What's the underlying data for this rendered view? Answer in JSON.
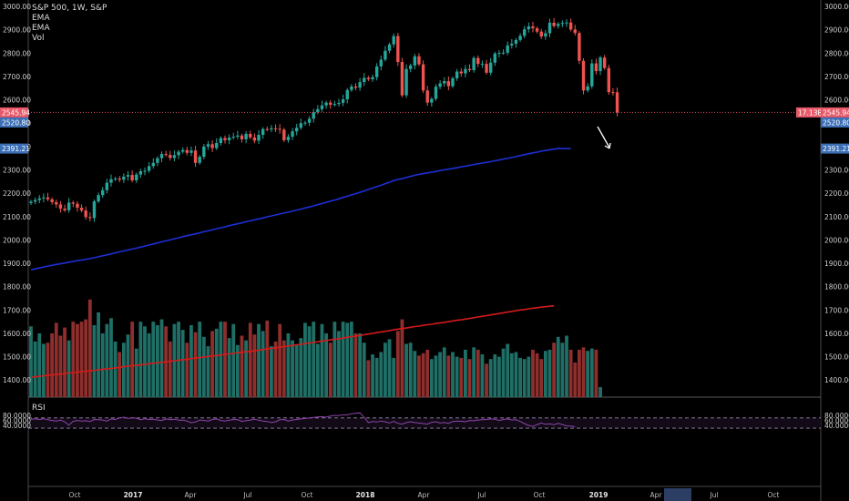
{
  "legend": {
    "symbol": "S&P 500, 1W, S&P",
    "items": [
      "EMA",
      "EMA",
      "Vol"
    ]
  },
  "rsi_label": "RSI",
  "price_tags": {
    "last": "2545.94",
    "ema_short": "2520.80",
    "ema_long": "2391.21",
    "volume": "17.13B",
    "right_last": "2545.94",
    "right_ema_short": "2520.80",
    "right_ema_long": "2391.21"
  },
  "colors": {
    "up": "#26a69a",
    "down": "#ef5350",
    "vol_up": "#1f6f66",
    "vol_down": "#8e2f2d",
    "ema_blue": "#1d2fd6",
    "ema_red": "#d21b1b",
    "rsi": "#8e44ad",
    "tag_red": "#e85a6a",
    "tag_blue": "#3b6fb6"
  },
  "chart_data": [
    {
      "type": "candlestick",
      "title": "S&P 500, 1W, S&P",
      "y_ticks": [
        "3000.00",
        "2900.00",
        "2800.00",
        "2700.00",
        "2600.00",
        "2500.00",
        "2400.00",
        "2300.00",
        "2200.00",
        "2100.00",
        "2000.00",
        "1900.00",
        "1800.00",
        "1700.00",
        "1600.00",
        "1500.00",
        "1400.00"
      ],
      "ylim": [
        1350,
        3010
      ],
      "x_ticks": [
        "Oct",
        "2017",
        "Apr",
        "Jul",
        "Oct",
        "2018",
        "Apr",
        "Jul",
        "Oct",
        "2019",
        "Apr",
        "Jul",
        "Oct"
      ],
      "close": [
        2164,
        2171,
        2178,
        2182,
        2174,
        2162,
        2152,
        2134,
        2127,
        2160,
        2155,
        2138,
        2126,
        2098,
        2094,
        2165,
        2192,
        2213,
        2245,
        2260,
        2263,
        2258,
        2271,
        2278,
        2255,
        2280,
        2294,
        2296,
        2316,
        2330,
        2350,
        2368,
        2364,
        2351,
        2363,
        2378,
        2385,
        2373,
        2383,
        2330,
        2356,
        2400,
        2410,
        2393,
        2415,
        2436,
        2427,
        2438,
        2442,
        2447,
        2431,
        2454,
        2439,
        2425,
        2450,
        2475,
        2473,
        2478,
        2476,
        2472,
        2427,
        2442,
        2465,
        2480,
        2500,
        2502,
        2519,
        2547,
        2560,
        2576,
        2588,
        2579,
        2582,
        2587,
        2602,
        2642,
        2657,
        2652,
        2676,
        2694,
        2688,
        2697,
        2743,
        2772,
        2810,
        2837,
        2873,
        2762,
        2619,
        2732,
        2747,
        2786,
        2752,
        2640,
        2588,
        2604,
        2656,
        2670,
        2680,
        2658,
        2692,
        2721,
        2713,
        2732,
        2727,
        2779,
        2754,
        2754,
        2716,
        2759,
        2798,
        2801,
        2802,
        2833,
        2840,
        2856,
        2874,
        2902,
        2914,
        2906,
        2892,
        2871,
        2885,
        2930,
        2916,
        2925,
        2929,
        2931,
        2901,
        2886,
        2767,
        2640,
        2658,
        2756,
        2723,
        2781,
        2736,
        2633,
        2632,
        2546
      ],
      "series": [
        {
          "name": "EMA",
          "values": [
            1872,
            1876,
            1880,
            1884,
            1888,
            1891,
            1895,
            1898,
            1901,
            1905,
            1908,
            1911,
            1914,
            1917,
            1920,
            1924,
            1928,
            1932,
            1936,
            1940,
            1945,
            1949,
            1953,
            1957,
            1961,
            1965,
            1969,
            1974,
            1978,
            1983,
            1987,
            1992,
            1996,
            2000,
            2005,
            2009,
            2014,
            2018,
            2022,
            2026,
            2030,
            2035,
            2039,
            2043,
            2048,
            2052,
            2056,
            2061,
            2065,
            2069,
            2073,
            2078,
            2082,
            2086,
            2090,
            2094,
            2099,
            2103,
            2107,
            2111,
            2115,
            2119,
            2123,
            2128,
            2132,
            2137,
            2141,
            2146,
            2151,
            2156,
            2161,
            2166,
            2171,
            2176,
            2182,
            2187,
            2193,
            2198,
            2204,
            2210,
            2216,
            2222,
            2228,
            2234,
            2241,
            2247,
            2254,
            2259,
            2262,
            2267,
            2272,
            2277,
            2281,
            2284,
            2287,
            2290,
            2293,
            2297,
            2300,
            2303,
            2306,
            2309,
            2313,
            2316,
            2319,
            2323,
            2326,
            2329,
            2332,
            2335,
            2339,
            2342,
            2346,
            2349,
            2353,
            2357,
            2361,
            2365,
            2369,
            2373,
            2376,
            2380,
            2383,
            2386,
            2389,
            2391,
            2391,
            2391,
            2391
          ]
        },
        {
          "name": "EMA",
          "values": [
            1412,
            1414,
            1416,
            1418,
            1420,
            1422,
            1424,
            1426,
            1428,
            1430,
            1432,
            1434,
            1436,
            1438,
            1440,
            1442,
            1444,
            1446,
            1448,
            1450,
            1452,
            1454,
            1457,
            1459,
            1461,
            1463,
            1465,
            1467,
            1470,
            1472,
            1474,
            1476,
            1478,
            1481,
            1483,
            1485,
            1487,
            1489,
            1492,
            1494,
            1496,
            1498,
            1501,
            1503,
            1505,
            1507,
            1510,
            1512,
            1514,
            1516,
            1519,
            1521,
            1523,
            1526,
            1528,
            1531,
            1533,
            1536,
            1538,
            1541,
            1543,
            1546,
            1548,
            1551,
            1553,
            1556,
            1559,
            1561,
            1564,
            1567,
            1569,
            1572,
            1575,
            1577,
            1580,
            1583,
            1586,
            1588,
            1591,
            1594,
            1597,
            1600,
            1603,
            1606,
            1609,
            1612,
            1615,
            1618,
            1620,
            1623,
            1626,
            1629,
            1631,
            1634,
            1637,
            1639,
            1642,
            1645,
            1647,
            1650,
            1653,
            1656,
            1658,
            1661,
            1664,
            1667,
            1670,
            1673,
            1676,
            1679,
            1682,
            1685,
            1688,
            1691,
            1694,
            1697,
            1700,
            1702,
            1705,
            1708,
            1710,
            1712,
            1714,
            1716,
            1718
          ]
        },
        {
          "name": "Vol",
          "values": [
            1630,
            1565,
            1600,
            1555,
            1560,
            1600,
            1645,
            1590,
            1625,
            1570,
            1650,
            1640,
            1650,
            1660,
            1745,
            1635,
            1690,
            1600,
            1640,
            1665,
            1565,
            1520,
            1560,
            1595,
            1650,
            1535,
            1650,
            1630,
            1600,
            1650,
            1635,
            1660,
            1630,
            1565,
            1640,
            1650,
            1615,
            1560,
            1635,
            1605,
            1650,
            1585,
            1545,
            1610,
            1620,
            1650,
            1650,
            1580,
            1640,
            1550,
            1590,
            1570,
            1645,
            1595,
            1640,
            1610,
            1655,
            1545,
            1565,
            1640,
            1570,
            1600,
            1570,
            1550,
            1580,
            1645,
            1630,
            1650,
            1555,
            1640,
            1600,
            1560,
            1650,
            1610,
            1650,
            1645,
            1650,
            1600,
            1600,
            1560,
            1485,
            1510,
            1495,
            1520,
            1560,
            1575,
            1495,
            1610,
            1660,
            1555,
            1560,
            1525,
            1505,
            1515,
            1530,
            1490,
            1505,
            1520,
            1540,
            1505,
            1520,
            1500,
            1495,
            1530,
            1490,
            1540,
            1530,
            1510,
            1470,
            1490,
            1510,
            1500,
            1535,
            1555,
            1515,
            1520,
            1495,
            1490,
            1500,
            1530,
            1515,
            1490,
            1525,
            1530,
            1560,
            1585,
            1560,
            1590,
            1530,
            1475,
            1530,
            1540,
            1525,
            1535,
            1530,
            1370
          ]
        },
        {
          "name": "RSI",
          "values": [
            65,
            66,
            64,
            67,
            63,
            60,
            58,
            62,
            55,
            42,
            57,
            60,
            58,
            59,
            56,
            64,
            63,
            62,
            58,
            66,
            64,
            70,
            73,
            68,
            71,
            69,
            63,
            67,
            64,
            65,
            62,
            60,
            66,
            63,
            65,
            61,
            62,
            58,
            51,
            54,
            62,
            60,
            58,
            64,
            66,
            60,
            58,
            61,
            64,
            63,
            57,
            59,
            62,
            65,
            61,
            58,
            56,
            52,
            55,
            63,
            64,
            58,
            62,
            64,
            66,
            68,
            70,
            72,
            74,
            75,
            73,
            77,
            80,
            79,
            82,
            82,
            86,
            88,
            90,
            72,
            52,
            56,
            54,
            58,
            55,
            50,
            57,
            49,
            46,
            52,
            55,
            52,
            50,
            48,
            46,
            53,
            55,
            50,
            52,
            49,
            56,
            58,
            57,
            55,
            60,
            59,
            62,
            63,
            64,
            66,
            65,
            60,
            64,
            66,
            62,
            63,
            56,
            48,
            41,
            37,
            44,
            50,
            45,
            47,
            43,
            49,
            44,
            39,
            38,
            36
          ]
        }
      ],
      "volume_last": "17.13B",
      "rsi_ticks": [
        "80.0000",
        "60.0000",
        "40.0000"
      ],
      "rsi_levels": [
        70,
        30
      ]
    }
  ]
}
